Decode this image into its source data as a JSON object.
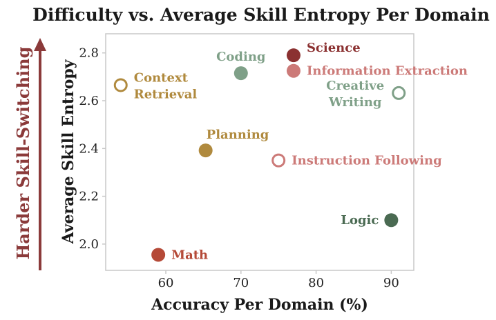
{
  "chart_data": {
    "type": "scatter",
    "title": "Difficulty vs. Average Skill Entropy Per Domain",
    "xlabel": "Accuracy Per Domain (%)",
    "ylabel": "Average Skill Entropy",
    "xlim": [
      52,
      93
    ],
    "ylim": [
      1.89,
      2.88
    ],
    "xticks": [
      60,
      70,
      80,
      90
    ],
    "yticks": [
      2.0,
      2.2,
      2.4,
      2.6,
      2.8
    ],
    "grid": false,
    "side_annotation": {
      "text": "Harder Skill-Switching",
      "color": "#8b3a3a",
      "direction": "up"
    },
    "points": [
      {
        "label": "Science",
        "x": 77.0,
        "y": 2.79,
        "color": "#8b3131",
        "filled": true,
        "label_pos": "right-up"
      },
      {
        "label": "Information Extraction",
        "x": 77.0,
        "y": 2.725,
        "color": "#cc7a78",
        "filled": true,
        "label_pos": "right"
      },
      {
        "label": "Coding",
        "x": 70.0,
        "y": 2.715,
        "color": "#7fa088",
        "filled": true,
        "label_pos": "above"
      },
      {
        "label": "Context Retrieval",
        "x": 54.0,
        "y": 2.665,
        "color": "#b08a3e",
        "filled": false,
        "label_pos": "right-two-line"
      },
      {
        "label": "Creative Writing",
        "x": 91.0,
        "y": 2.632,
        "color": "#7fa088",
        "filled": false,
        "label_pos": "left-two-line"
      },
      {
        "label": "Planning",
        "x": 65.3,
        "y": 2.392,
        "color": "#b08a3e",
        "filled": true,
        "label_pos": "above-right"
      },
      {
        "label": "Instruction Following",
        "x": 75.0,
        "y": 2.35,
        "color": "#cc7a78",
        "filled": false,
        "label_pos": "right"
      },
      {
        "label": "Logic",
        "x": 90.0,
        "y": 2.1,
        "color": "#4a6a52",
        "filled": true,
        "label_pos": "left"
      },
      {
        "label": "Math",
        "x": 59.0,
        "y": 1.955,
        "color": "#b54a38",
        "filled": true,
        "label_pos": "right"
      }
    ]
  }
}
